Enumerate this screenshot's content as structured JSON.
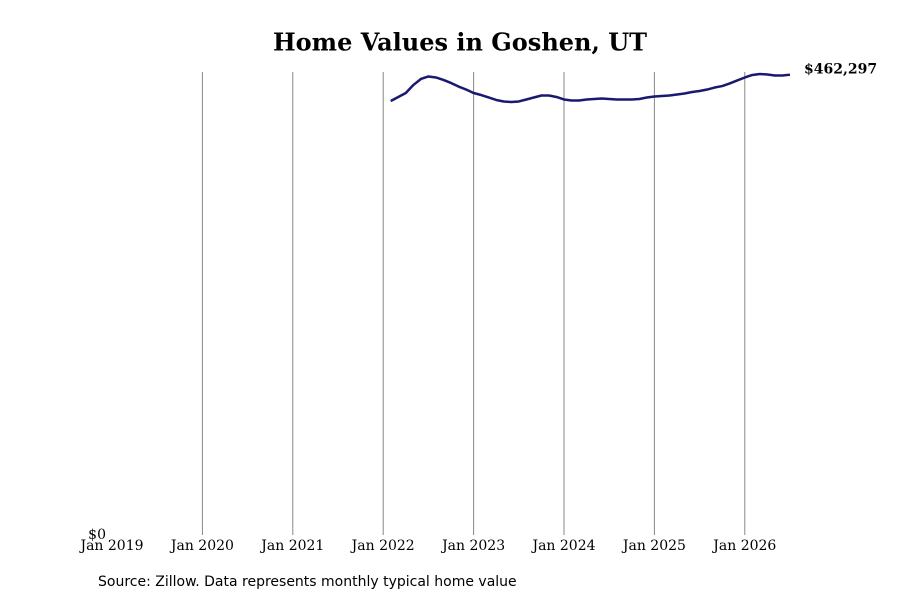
{
  "chart_data": {
    "type": "line",
    "title": "Home Values in Goshen, UT",
    "source": "Source: Zillow. Data represents monthly typical home value",
    "x": [
      "2022-02",
      "2022-03",
      "2022-04",
      "2022-05",
      "2022-06",
      "2022-07",
      "2022-08",
      "2022-09",
      "2022-10",
      "2022-11",
      "2022-12",
      "2023-01",
      "2023-02",
      "2023-03",
      "2023-04",
      "2023-05",
      "2023-06",
      "2023-07",
      "2023-08",
      "2023-09",
      "2023-10",
      "2023-11",
      "2023-12",
      "2024-01",
      "2024-02",
      "2024-03",
      "2024-04",
      "2024-05",
      "2024-06",
      "2024-07",
      "2024-08",
      "2024-09",
      "2024-10",
      "2024-11",
      "2024-12",
      "2025-01",
      "2025-02",
      "2025-03",
      "2025-04",
      "2025-05",
      "2025-06",
      "2025-07",
      "2025-08",
      "2025-09",
      "2025-10",
      "2025-11",
      "2025-12",
      "2026-01",
      "2026-02",
      "2026-03",
      "2026-04",
      "2026-05",
      "2026-06",
      "2026-07"
    ],
    "series": [
      {
        "color": "#191970",
        "values": [
          435900,
          439900,
          443900,
          451900,
          458000,
          460500,
          459500,
          457000,
          454000,
          450400,
          447400,
          443900,
          441900,
          439400,
          436900,
          435400,
          434900,
          435400,
          437400,
          439400,
          441400,
          441400,
          439900,
          437400,
          436400,
          436400,
          437400,
          437900,
          438400,
          437900,
          437400,
          437400,
          437400,
          437900,
          439400,
          440400,
          440900,
          441400,
          442400,
          443400,
          444900,
          445900,
          447400,
          449400,
          450900,
          453500,
          456500,
          459500,
          462000,
          463000,
          462500,
          461500,
          461500,
          462297
        ]
      }
    ],
    "last_value_label": "$462,297",
    "xlim": [
      "2019-01",
      "2026-07"
    ],
    "xticks": [
      {
        "value": "2019-01",
        "label": "Jan 2019"
      },
      {
        "value": "2020-01",
        "label": "Jan 2020"
      },
      {
        "value": "2021-01",
        "label": "Jan 2021"
      },
      {
        "value": "2022-01",
        "label": "Jan 2022"
      },
      {
        "value": "2023-01",
        "label": "Jan 2023"
      },
      {
        "value": "2024-01",
        "label": "Jan 2024"
      },
      {
        "value": "2025-01",
        "label": "Jan 2025"
      },
      {
        "value": "2026-01",
        "label": "Jan 2026"
      }
    ],
    "ylim": [
      0,
      465000
    ],
    "yticks": [
      {
        "value": 0,
        "label": "$0"
      }
    ],
    "grid": true
  }
}
